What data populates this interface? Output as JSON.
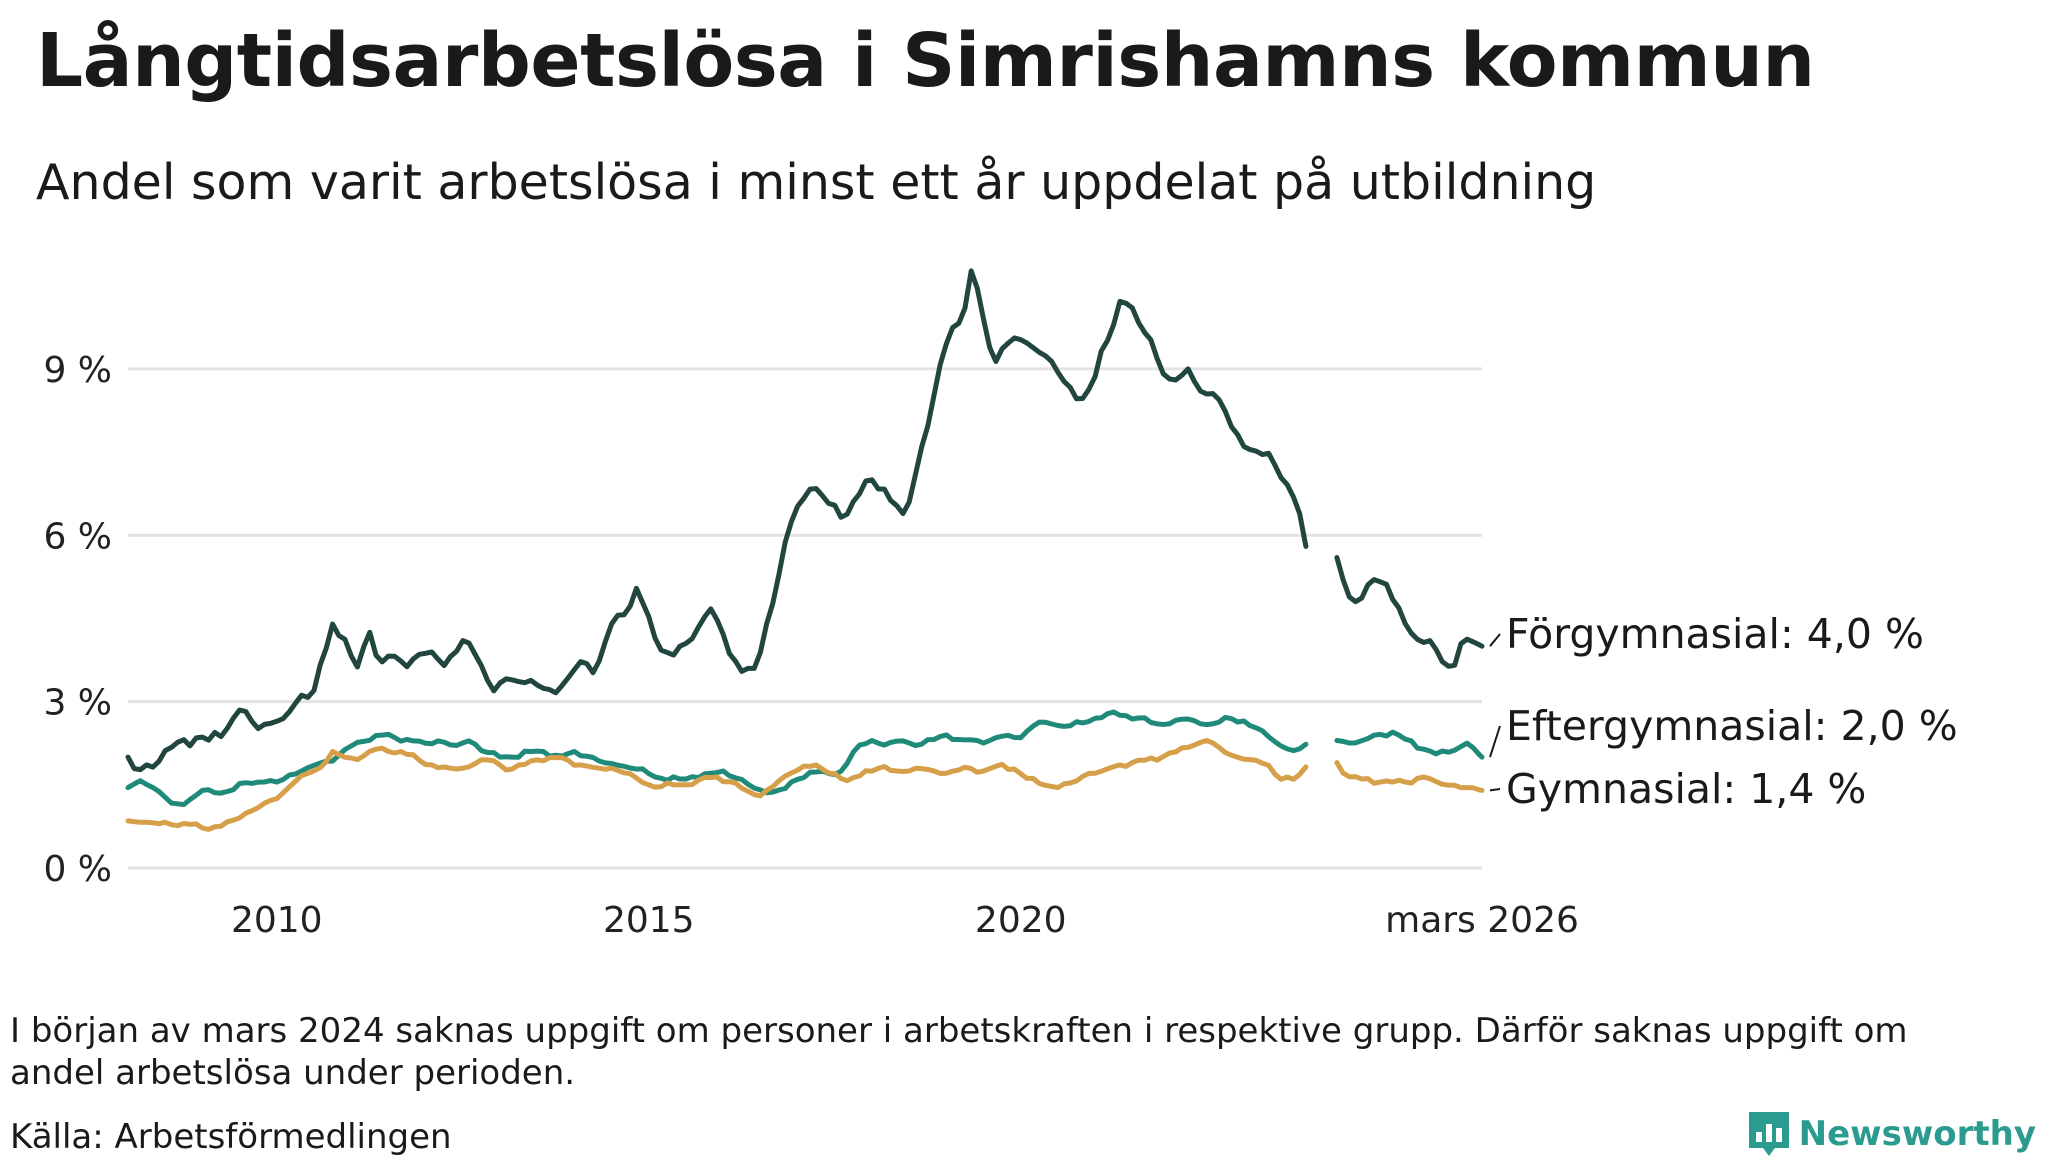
{
  "title": "Långtidsarbetslösa i Simrishamns kommun",
  "subtitle": "Andel som varit arbetslösa i minst ett år uppdelat på utbildning",
  "note": "I början av mars 2024 saknas uppgift om personer i arbetskraften i respektive grupp. Därför saknas uppgift om andel arbetslösa under perioden.",
  "source": "Källa: Arbetsförmedlingen",
  "brand": "Newsworthy",
  "icons": [
    "newsworthy-logo-icon"
  ],
  "chart_data": {
    "type": "line",
    "title": "Långtidsarbetslösa i Simrishamns kommun",
    "subtitle": "Andel som varit arbetslösa i minst ett år uppdelat på utbildning",
    "xlabel": "",
    "ylabel": "",
    "x_start": 2008.0,
    "x_step_months": 1,
    "xlim": [
      2008.0,
      2026.2
    ],
    "ylim": [
      0,
      11
    ],
    "gap": [
      2023.9,
      2024.25
    ],
    "y_ticks": [
      {
        "value": 0,
        "label": "0 %"
      },
      {
        "value": 3,
        "label": "3 %"
      },
      {
        "value": 6,
        "label": "6 %"
      },
      {
        "value": 9,
        "label": "9 %"
      }
    ],
    "x_ticks": [
      {
        "value": 2010,
        "label": "2010"
      },
      {
        "value": 2015,
        "label": "2015"
      },
      {
        "value": 2020,
        "label": "2020"
      },
      {
        "value": 2026.2,
        "label": "mars 2026"
      }
    ],
    "grid": true,
    "series": [
      {
        "name": "Förgymnasial",
        "label": "Förgymnasial: 4,0 %",
        "color": "#21463f",
        "keyframes": [
          [
            2008.0,
            2.0
          ],
          [
            2008.1,
            1.75
          ],
          [
            2008.4,
            1.9
          ],
          [
            2008.6,
            2.2
          ],
          [
            2008.9,
            2.35
          ],
          [
            2009.1,
            2.3
          ],
          [
            2009.3,
            2.45
          ],
          [
            2009.5,
            2.85
          ],
          [
            2009.7,
            2.6
          ],
          [
            2009.9,
            2.6
          ],
          [
            2010.1,
            2.7
          ],
          [
            2010.3,
            3.1
          ],
          [
            2010.5,
            3.2
          ],
          [
            2010.75,
            4.4
          ],
          [
            2010.9,
            4.2
          ],
          [
            2011.05,
            3.5
          ],
          [
            2011.25,
            4.25
          ],
          [
            2011.4,
            3.7
          ],
          [
            2011.55,
            3.85
          ],
          [
            2011.7,
            3.7
          ],
          [
            2011.9,
            3.85
          ],
          [
            2012.1,
            3.9
          ],
          [
            2012.25,
            3.65
          ],
          [
            2012.5,
            4.1
          ],
          [
            2012.7,
            3.8
          ],
          [
            2012.95,
            3.1
          ],
          [
            2013.1,
            3.45
          ],
          [
            2013.3,
            3.35
          ],
          [
            2013.5,
            3.3
          ],
          [
            2013.7,
            3.2
          ],
          [
            2013.9,
            3.4
          ],
          [
            2014.1,
            3.75
          ],
          [
            2014.3,
            3.6
          ],
          [
            2014.5,
            4.4
          ],
          [
            2014.7,
            4.6
          ],
          [
            2014.85,
            5.1
          ],
          [
            2015.05,
            4.2
          ],
          [
            2015.3,
            3.8
          ],
          [
            2015.5,
            4.05
          ],
          [
            2015.7,
            4.4
          ],
          [
            2015.8,
            4.75
          ],
          [
            2015.95,
            4.4
          ],
          [
            2016.1,
            3.8
          ],
          [
            2016.3,
            3.6
          ],
          [
            2016.45,
            3.6
          ],
          [
            2016.6,
            4.5
          ],
          [
            2016.75,
            5.3
          ],
          [
            2016.9,
            6.2
          ],
          [
            2017.05,
            6.6
          ],
          [
            2017.2,
            6.9
          ],
          [
            2017.4,
            6.6
          ],
          [
            2017.6,
            6.3
          ],
          [
            2017.8,
            6.7
          ],
          [
            2018.0,
            7.0
          ],
          [
            2018.2,
            6.8
          ],
          [
            2018.4,
            6.35
          ],
          [
            2018.5,
            6.6
          ],
          [
            2018.65,
            7.5
          ],
          [
            2018.8,
            8.3
          ],
          [
            2018.95,
            9.3
          ],
          [
            2019.1,
            9.8
          ],
          [
            2019.25,
            10.1
          ],
          [
            2019.35,
            10.9
          ],
          [
            2019.5,
            9.9
          ],
          [
            2019.65,
            9.1
          ],
          [
            2019.85,
            9.5
          ],
          [
            2020.05,
            9.5
          ],
          [
            2020.25,
            9.3
          ],
          [
            2020.45,
            9.1
          ],
          [
            2020.65,
            8.7
          ],
          [
            2020.8,
            8.4
          ],
          [
            2020.95,
            8.7
          ],
          [
            2021.1,
            9.4
          ],
          [
            2021.25,
            9.8
          ],
          [
            2021.35,
            10.3
          ],
          [
            2021.5,
            10.1
          ],
          [
            2021.65,
            9.7
          ],
          [
            2021.8,
            9.3
          ],
          [
            2021.95,
            8.8
          ],
          [
            2022.1,
            8.8
          ],
          [
            2022.25,
            9.0
          ],
          [
            2022.4,
            8.6
          ],
          [
            2022.55,
            8.6
          ],
          [
            2022.7,
            8.4
          ],
          [
            2022.85,
            7.9
          ],
          [
            2023.0,
            7.6
          ],
          [
            2023.2,
            7.5
          ],
          [
            2023.4,
            7.3
          ],
          [
            2023.55,
            7.0
          ],
          [
            2023.7,
            6.6
          ],
          [
            2023.85,
            5.7
          ],
          [
            2023.9,
            6.1
          ],
          [
            2024.25,
            5.6
          ],
          [
            2024.4,
            4.9
          ],
          [
            2024.55,
            4.8
          ],
          [
            2024.75,
            5.2
          ],
          [
            2024.95,
            5.1
          ],
          [
            2025.05,
            4.8
          ],
          [
            2025.2,
            4.3
          ],
          [
            2025.35,
            4.1
          ],
          [
            2025.5,
            4.1
          ],
          [
            2025.65,
            3.75
          ],
          [
            2025.8,
            3.5
          ],
          [
            2025.95,
            4.2
          ],
          [
            2026.05,
            4.1
          ],
          [
            2026.2,
            4.0
          ]
        ]
      },
      {
        "name": "Eftergymnasial",
        "label": "Eftergymnasial: 2,0 %",
        "color": "#1f8a7a",
        "keyframes": [
          [
            2008.0,
            1.45
          ],
          [
            2008.2,
            1.6
          ],
          [
            2008.4,
            1.4
          ],
          [
            2008.6,
            1.15
          ],
          [
            2008.8,
            1.2
          ],
          [
            2009.0,
            1.4
          ],
          [
            2009.2,
            1.35
          ],
          [
            2009.4,
            1.4
          ],
          [
            2009.6,
            1.55
          ],
          [
            2009.8,
            1.55
          ],
          [
            2010.0,
            1.55
          ],
          [
            2010.2,
            1.7
          ],
          [
            2010.4,
            1.8
          ],
          [
            2010.6,
            1.9
          ],
          [
            2010.8,
            2.0
          ],
          [
            2011.0,
            2.2
          ],
          [
            2011.2,
            2.3
          ],
          [
            2011.4,
            2.4
          ],
          [
            2011.6,
            2.35
          ],
          [
            2011.8,
            2.3
          ],
          [
            2012.0,
            2.25
          ],
          [
            2012.2,
            2.3
          ],
          [
            2012.4,
            2.2
          ],
          [
            2012.6,
            2.3
          ],
          [
            2012.8,
            2.1
          ],
          [
            2013.0,
            2.0
          ],
          [
            2013.2,
            2.0
          ],
          [
            2013.4,
            2.1
          ],
          [
            2013.6,
            2.1
          ],
          [
            2013.8,
            2.0
          ],
          [
            2014.0,
            2.1
          ],
          [
            2014.2,
            2.0
          ],
          [
            2014.4,
            1.9
          ],
          [
            2014.6,
            1.85
          ],
          [
            2014.8,
            1.8
          ],
          [
            2015.0,
            1.7
          ],
          [
            2015.2,
            1.6
          ],
          [
            2015.4,
            1.6
          ],
          [
            2015.6,
            1.65
          ],
          [
            2015.8,
            1.7
          ],
          [
            2016.0,
            1.75
          ],
          [
            2016.2,
            1.6
          ],
          [
            2016.4,
            1.45
          ],
          [
            2016.6,
            1.35
          ],
          [
            2016.8,
            1.4
          ],
          [
            2017.0,
            1.6
          ],
          [
            2017.2,
            1.75
          ],
          [
            2017.4,
            1.7
          ],
          [
            2017.6,
            1.75
          ],
          [
            2017.8,
            2.2
          ],
          [
            2018.0,
            2.3
          ],
          [
            2018.2,
            2.2
          ],
          [
            2018.4,
            2.3
          ],
          [
            2018.6,
            2.2
          ],
          [
            2018.8,
            2.3
          ],
          [
            2019.0,
            2.4
          ],
          [
            2019.2,
            2.3
          ],
          [
            2019.4,
            2.3
          ],
          [
            2019.6,
            2.3
          ],
          [
            2019.8,
            2.4
          ],
          [
            2020.0,
            2.35
          ],
          [
            2020.2,
            2.6
          ],
          [
            2020.4,
            2.6
          ],
          [
            2020.6,
            2.55
          ],
          [
            2020.8,
            2.6
          ],
          [
            2021.0,
            2.7
          ],
          [
            2021.2,
            2.8
          ],
          [
            2021.4,
            2.75
          ],
          [
            2021.6,
            2.7
          ],
          [
            2021.8,
            2.6
          ],
          [
            2022.0,
            2.6
          ],
          [
            2022.2,
            2.7
          ],
          [
            2022.4,
            2.6
          ],
          [
            2022.6,
            2.6
          ],
          [
            2022.8,
            2.7
          ],
          [
            2023.0,
            2.65
          ],
          [
            2023.1,
            2.55
          ],
          [
            2023.3,
            2.4
          ],
          [
            2023.5,
            2.2
          ],
          [
            2023.7,
            2.1
          ],
          [
            2023.85,
            2.25
          ],
          [
            2023.9,
            2.2
          ],
          [
            2024.25,
            2.3
          ],
          [
            2024.4,
            2.25
          ],
          [
            2024.6,
            2.3
          ],
          [
            2024.8,
            2.4
          ],
          [
            2025.0,
            2.45
          ],
          [
            2025.2,
            2.3
          ],
          [
            2025.4,
            2.15
          ],
          [
            2025.6,
            2.05
          ],
          [
            2025.8,
            2.1
          ],
          [
            2026.0,
            2.25
          ],
          [
            2026.2,
            2.0
          ]
        ]
      },
      {
        "name": "Gymnasial",
        "label": "Gymnasial: 1,4 %",
        "color": "#d6a04a",
        "keyframes": [
          [
            2008.0,
            0.85
          ],
          [
            2008.2,
            0.82
          ],
          [
            2008.4,
            0.8
          ],
          [
            2008.6,
            0.78
          ],
          [
            2008.8,
            0.8
          ],
          [
            2009.0,
            0.72
          ],
          [
            2009.2,
            0.75
          ],
          [
            2009.4,
            0.85
          ],
          [
            2009.6,
            1.0
          ],
          [
            2009.8,
            1.15
          ],
          [
            2010.0,
            1.25
          ],
          [
            2010.2,
            1.5
          ],
          [
            2010.4,
            1.7
          ],
          [
            2010.55,
            1.75
          ],
          [
            2010.75,
            2.1
          ],
          [
            2010.9,
            2.0
          ],
          [
            2011.1,
            1.95
          ],
          [
            2011.3,
            2.15
          ],
          [
            2011.5,
            2.1
          ],
          [
            2011.7,
            2.1
          ],
          [
            2011.9,
            1.95
          ],
          [
            2012.1,
            1.85
          ],
          [
            2012.3,
            1.8
          ],
          [
            2012.5,
            1.8
          ],
          [
            2012.7,
            1.9
          ],
          [
            2012.9,
            1.95
          ],
          [
            2013.1,
            1.75
          ],
          [
            2013.3,
            1.85
          ],
          [
            2013.5,
            1.95
          ],
          [
            2013.7,
            2.0
          ],
          [
            2013.9,
            1.95
          ],
          [
            2014.1,
            1.85
          ],
          [
            2014.3,
            1.8
          ],
          [
            2014.5,
            1.8
          ],
          [
            2014.7,
            1.7
          ],
          [
            2014.9,
            1.55
          ],
          [
            2015.1,
            1.45
          ],
          [
            2015.3,
            1.5
          ],
          [
            2015.5,
            1.5
          ],
          [
            2015.7,
            1.6
          ],
          [
            2015.9,
            1.65
          ],
          [
            2016.1,
            1.55
          ],
          [
            2016.3,
            1.4
          ],
          [
            2016.5,
            1.3
          ],
          [
            2016.7,
            1.5
          ],
          [
            2016.9,
            1.7
          ],
          [
            2017.1,
            1.85
          ],
          [
            2017.3,
            1.8
          ],
          [
            2017.5,
            1.7
          ],
          [
            2017.7,
            1.55
          ],
          [
            2017.9,
            1.75
          ],
          [
            2018.1,
            1.8
          ],
          [
            2018.3,
            1.75
          ],
          [
            2018.5,
            1.75
          ],
          [
            2018.7,
            1.8
          ],
          [
            2018.9,
            1.7
          ],
          [
            2019.1,
            1.75
          ],
          [
            2019.3,
            1.8
          ],
          [
            2019.5,
            1.75
          ],
          [
            2019.7,
            1.85
          ],
          [
            2019.9,
            1.8
          ],
          [
            2020.1,
            1.6
          ],
          [
            2020.3,
            1.5
          ],
          [
            2020.5,
            1.45
          ],
          [
            2020.7,
            1.55
          ],
          [
            2020.9,
            1.7
          ],
          [
            2021.1,
            1.75
          ],
          [
            2021.3,
            1.85
          ],
          [
            2021.5,
            1.9
          ],
          [
            2021.7,
            1.95
          ],
          [
            2021.9,
            2.0
          ],
          [
            2022.1,
            2.1
          ],
          [
            2022.3,
            2.2
          ],
          [
            2022.5,
            2.3
          ],
          [
            2022.7,
            2.15
          ],
          [
            2022.9,
            2.0
          ],
          [
            2023.1,
            1.95
          ],
          [
            2023.3,
            1.9
          ],
          [
            2023.5,
            1.6
          ],
          [
            2023.7,
            1.6
          ],
          [
            2023.85,
            1.85
          ],
          [
            2023.9,
            1.9
          ],
          [
            2024.25,
            1.9
          ],
          [
            2024.4,
            1.65
          ],
          [
            2024.6,
            1.6
          ],
          [
            2024.8,
            1.55
          ],
          [
            2025.0,
            1.55
          ],
          [
            2025.2,
            1.55
          ],
          [
            2025.4,
            1.65
          ],
          [
            2025.6,
            1.55
          ],
          [
            2025.8,
            1.5
          ],
          [
            2026.0,
            1.45
          ],
          [
            2026.2,
            1.4
          ]
        ]
      }
    ]
  }
}
